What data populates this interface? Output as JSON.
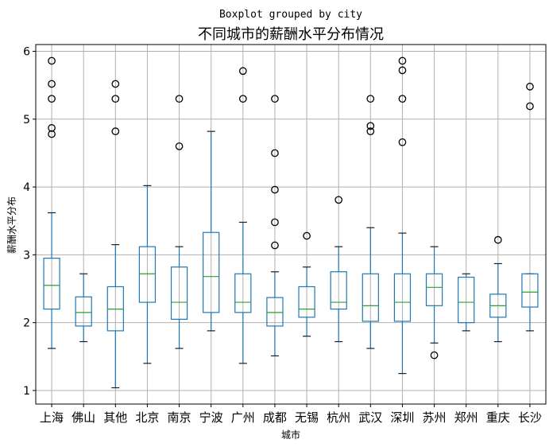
{
  "chart_data": {
    "type": "boxplot",
    "suptitle": "Boxplot grouped by city",
    "title": "不同城市的薪酬水平分布情况",
    "xlabel": "城市",
    "ylabel": "薪酬水平分布",
    "ylim": [
      0.8,
      6.1
    ],
    "yticks": [
      1,
      2,
      3,
      4,
      5,
      6
    ],
    "grid": true,
    "categories": [
      "上海",
      "佛山",
      "其他",
      "北京",
      "南京",
      "宁波",
      "广州",
      "成都",
      "无锡",
      "杭州",
      "武汉",
      "深圳",
      "苏州",
      "郑州",
      "重庆",
      "长沙"
    ],
    "boxes": [
      {
        "whislo": 1.62,
        "q1": 2.2,
        "med": 2.55,
        "q3": 2.95,
        "whishi": 3.62,
        "fliers": [
          4.78,
          4.87,
          5.3,
          5.52,
          5.86
        ]
      },
      {
        "whislo": 1.72,
        "q1": 1.95,
        "med": 2.15,
        "q3": 2.38,
        "whishi": 2.72,
        "fliers": []
      },
      {
        "whislo": 1.04,
        "q1": 1.88,
        "med": 2.2,
        "q3": 2.53,
        "whishi": 3.15,
        "fliers": [
          4.82,
          5.3,
          5.52
        ]
      },
      {
        "whislo": 1.4,
        "q1": 2.3,
        "med": 2.72,
        "q3": 3.12,
        "whishi": 4.02,
        "fliers": []
      },
      {
        "whislo": 1.62,
        "q1": 2.05,
        "med": 2.3,
        "q3": 2.82,
        "whishi": 3.12,
        "fliers": [
          4.6,
          5.3
        ]
      },
      {
        "whislo": 1.88,
        "q1": 2.15,
        "med": 2.68,
        "q3": 3.33,
        "whishi": 4.82,
        "fliers": []
      },
      {
        "whislo": 1.4,
        "q1": 2.15,
        "med": 2.3,
        "q3": 2.72,
        "whishi": 3.48,
        "fliers": [
          5.3,
          5.71
        ]
      },
      {
        "whislo": 1.51,
        "q1": 1.95,
        "med": 2.15,
        "q3": 2.37,
        "whishi": 2.75,
        "fliers": [
          3.14,
          3.48,
          3.96,
          4.5,
          5.3
        ]
      },
      {
        "whislo": 1.8,
        "q1": 2.08,
        "med": 2.2,
        "q3": 2.53,
        "whishi": 2.82,
        "fliers": [
          3.28
        ]
      },
      {
        "whislo": 1.72,
        "q1": 2.2,
        "med": 2.3,
        "q3": 2.75,
        "whishi": 3.12,
        "fliers": [
          3.81
        ]
      },
      {
        "whislo": 1.62,
        "q1": 2.02,
        "med": 2.25,
        "q3": 2.72,
        "whishi": 3.4,
        "fliers": [
          4.82,
          4.9,
          5.3
        ]
      },
      {
        "whislo": 1.25,
        "q1": 2.02,
        "med": 2.3,
        "q3": 2.72,
        "whishi": 3.32,
        "fliers": [
          4.66,
          5.3,
          5.72,
          5.86
        ]
      },
      {
        "whislo": 1.7,
        "q1": 2.25,
        "med": 2.52,
        "q3": 2.72,
        "whishi": 3.12,
        "fliers": [
          1.52
        ]
      },
      {
        "whislo": 1.88,
        "q1": 2.0,
        "med": 2.3,
        "q3": 2.67,
        "whishi": 2.72,
        "fliers": []
      },
      {
        "whislo": 1.72,
        "q1": 2.08,
        "med": 2.25,
        "q3": 2.42,
        "whishi": 2.87,
        "fliers": [
          3.22
        ]
      },
      {
        "whislo": 1.88,
        "q1": 2.23,
        "med": 2.45,
        "q3": 2.72,
        "whishi": 2.72,
        "fliers": [
          5.19,
          5.48
        ]
      }
    ],
    "colors": {
      "box": "#1f77b4",
      "median": "#2ca02c",
      "flier": "#000000",
      "grid": "#b0b0b0"
    }
  }
}
